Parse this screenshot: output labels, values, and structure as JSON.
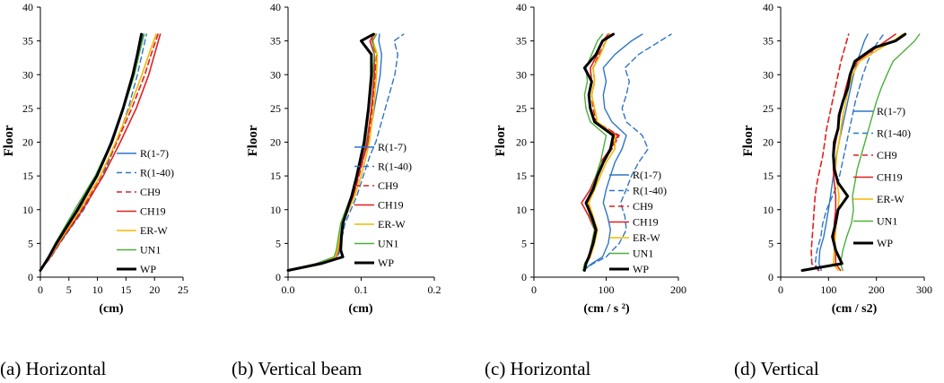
{
  "figure": {
    "captions": [
      "(a) Horizontal",
      "(b) Vertical beam",
      "(c) Horizontal",
      "(d) Vertical"
    ]
  },
  "series_styles": {
    "R(1-7)": {
      "color": "#2E75C7",
      "dash": "solid",
      "width": 1.4
    },
    "R(1-40)": {
      "color": "#2E75C7",
      "dash": "dashed",
      "width": 1.4
    },
    "CH9": {
      "color": "#E02020",
      "dash": "dashed",
      "width": 1.6
    },
    "CH19": {
      "color": "#E02020",
      "dash": "solid",
      "width": 1.6
    },
    "ER-W": {
      "color": "#F5B800",
      "dash": "solid",
      "width": 1.6
    },
    "UN1": {
      "color": "#4CAF3A",
      "dash": "solid",
      "width": 1.4
    },
    "WP": {
      "color": "#000000",
      "dash": "solid",
      "width": 3.0
    }
  },
  "chart_data": [
    {
      "type": "line",
      "title": "(a) Horizontal",
      "xlabel": "(cm)",
      "ylabel": "Floor",
      "xlim": [
        0,
        25
      ],
      "ylim": [
        0,
        40
      ],
      "xticks": [
        0,
        5,
        10,
        15,
        20,
        25
      ],
      "yticks": [
        0,
        5,
        10,
        15,
        20,
        25,
        30,
        35,
        40
      ],
      "legend_position": "right",
      "floors": [
        1,
        3,
        5,
        10,
        15,
        20,
        25,
        30,
        33,
        36
      ],
      "series": [
        {
          "name": "R(1-7)",
          "values": [
            0,
            1.6,
            2.9,
            6.8,
            9.9,
            12.3,
            14.4,
            16.2,
            17.1,
            18.0
          ]
        },
        {
          "name": "R(1-40)",
          "values": [
            0,
            1.9,
            3.4,
            7.6,
            10.9,
            13.4,
            15.4,
            17.0,
            17.8,
            18.6
          ]
        },
        {
          "name": "CH9",
          "values": [
            0,
            1.8,
            3.2,
            7.2,
            10.6,
            13.4,
            16.0,
            18.3,
            19.4,
            20.6
          ]
        },
        {
          "name": "CH19",
          "values": [
            0,
            1.8,
            3.3,
            7.4,
            11.0,
            14.0,
            16.8,
            19.0,
            20.0,
            21.0
          ]
        },
        {
          "name": "ER-W",
          "values": [
            0,
            1.7,
            3.1,
            7.0,
            10.5,
            13.2,
            15.6,
            17.8,
            19.0,
            20.3
          ]
        },
        {
          "name": "UN1",
          "values": [
            0,
            1.4,
            2.6,
            6.0,
            9.6,
            12.4,
            14.6,
            16.5,
            17.3,
            18.2
          ]
        },
        {
          "name": "WP",
          "values": [
            0,
            1.5,
            2.8,
            6.5,
            9.9,
            12.5,
            14.5,
            16.2,
            17.0,
            17.7
          ]
        }
      ]
    },
    {
      "type": "line",
      "title": "(b) Vertical beam",
      "xlabel": "(cm)",
      "ylabel": "Floor",
      "xlim": [
        0,
        0.2
      ],
      "ylim": [
        0,
        40
      ],
      "xticks": [
        0.0,
        0.1,
        0.2
      ],
      "ytick_labels": [
        "0",
        "5",
        "10",
        "15",
        "20",
        "25",
        "30",
        "35",
        "40"
      ],
      "yticks": [
        0,
        5,
        10,
        15,
        20,
        25,
        30,
        35,
        40
      ],
      "legend_position": "right",
      "floors": [
        1,
        2,
        3,
        4,
        6,
        8,
        10,
        12,
        15,
        18,
        20,
        25,
        30,
        33,
        35,
        36
      ],
      "series": [
        {
          "name": "R(1-7)",
          "values": [
            0,
            0.04,
            0.065,
            0.068,
            0.071,
            0.074,
            0.081,
            0.088,
            0.096,
            0.104,
            0.11,
            0.118,
            0.126,
            0.128,
            0.124,
            0.125
          ]
        },
        {
          "name": "R(1-40)",
          "values": [
            0,
            0.045,
            0.068,
            0.071,
            0.074,
            0.078,
            0.086,
            0.094,
            0.103,
            0.112,
            0.12,
            0.133,
            0.146,
            0.15,
            0.145,
            0.158
          ]
        },
        {
          "name": "CH9",
          "values": [
            0,
            0.042,
            0.066,
            0.069,
            0.072,
            0.075,
            0.082,
            0.089,
            0.097,
            0.104,
            0.11,
            0.115,
            0.119,
            0.121,
            0.115,
            0.118
          ]
        },
        {
          "name": "CH19",
          "values": [
            0,
            0.04,
            0.066,
            0.069,
            0.072,
            0.075,
            0.082,
            0.089,
            0.096,
            0.103,
            0.108,
            0.114,
            0.118,
            0.118,
            0.112,
            0.118
          ]
        },
        {
          "name": "ER-W",
          "values": [
            0,
            0.04,
            0.065,
            0.068,
            0.071,
            0.075,
            0.083,
            0.091,
            0.1,
            0.107,
            0.111,
            0.117,
            0.121,
            0.122,
            0.116,
            0.12
          ]
        },
        {
          "name": "UN1",
          "values": [
            0,
            0.038,
            0.063,
            0.066,
            0.069,
            0.072,
            0.079,
            0.086,
            0.094,
            0.101,
            0.106,
            0.111,
            0.116,
            0.118,
            0.116,
            0.121
          ]
        },
        {
          "name": "WP",
          "values": [
            0,
            0.045,
            0.075,
            0.072,
            0.073,
            0.075,
            0.081,
            0.087,
            0.094,
            0.1,
            0.104,
            0.11,
            0.114,
            0.114,
            0.1,
            0.117
          ]
        }
      ]
    },
    {
      "type": "line",
      "title": "(c) Horizontal",
      "xlabel": "(cm / s ²)",
      "ylabel": "Floor",
      "xlim": [
        0,
        200
      ],
      "ylim": [
        0,
        40
      ],
      "xticks": [
        0,
        100,
        200
      ],
      "yticks": [
        0,
        5,
        10,
        15,
        20,
        25,
        30,
        35,
        40
      ],
      "legend_position": "right",
      "floors": [
        1,
        2,
        3,
        5,
        7,
        9,
        11,
        13,
        15,
        17,
        19,
        21,
        23,
        25,
        27,
        29,
        31,
        33,
        35,
        36
      ],
      "series": [
        {
          "name": "R(1-7)",
          "values": [
            68,
            80,
            95,
            103,
            106,
            102,
            96,
            100,
            106,
            112,
            122,
            128,
            108,
            98,
            96,
            100,
            96,
            112,
            135,
            150
          ]
        },
        {
          "name": "R(1-40)",
          "values": [
            68,
            82,
            100,
            118,
            128,
            126,
            120,
            128,
            135,
            145,
            158,
            150,
            128,
            122,
            128,
            132,
            126,
            145,
            175,
            190
          ]
        },
        {
          "name": "CH9",
          "values": [
            70,
            72,
            78,
            82,
            86,
            80,
            74,
            82,
            88,
            96,
            108,
            118,
            86,
            82,
            80,
            84,
            82,
            90,
            100,
            105
          ]
        },
        {
          "name": "CH19",
          "values": [
            70,
            72,
            76,
            80,
            84,
            76,
            66,
            78,
            86,
            92,
            106,
            116,
            84,
            78,
            76,
            80,
            78,
            88,
            95,
            103
          ]
        },
        {
          "name": "ER-W",
          "values": [
            70,
            72,
            78,
            84,
            88,
            82,
            76,
            84,
            92,
            100,
            112,
            112,
            88,
            84,
            80,
            84,
            82,
            92,
            100,
            105
          ]
        },
        {
          "name": "UN1",
          "values": [
            68,
            70,
            76,
            80,
            84,
            78,
            72,
            80,
            86,
            92,
            96,
            100,
            78,
            72,
            70,
            74,
            72,
            80,
            88,
            95
          ]
        },
        {
          "name": "WP",
          "values": [
            70,
            72,
            76,
            82,
            86,
            80,
            72,
            82,
            88,
            96,
            106,
            110,
            84,
            78,
            76,
            80,
            70,
            86,
            95,
            110
          ]
        }
      ]
    },
    {
      "type": "line",
      "title": "(d) Vertical",
      "xlabel": "(cm / s2)",
      "ylabel": "Floor",
      "xlim": [
        0,
        300
      ],
      "ylim": [
        0,
        40
      ],
      "xticks": [
        0,
        100,
        200,
        300
      ],
      "yticks": [
        0,
        5,
        10,
        15,
        20,
        25,
        30,
        35,
        40
      ],
      "legend_position": "right",
      "floors": [
        1,
        2,
        4,
        6,
        8,
        10,
        12,
        14,
        16,
        18,
        20,
        22,
        24,
        26,
        28,
        30,
        32,
        34,
        35,
        36
      ],
      "series": [
        {
          "name": "R(1-7)",
          "values": [
            85,
            80,
            82,
            90,
            95,
            100,
            104,
            108,
            112,
            116,
            122,
            128,
            134,
            140,
            146,
            152,
            160,
            170,
            175,
            182
          ]
        },
        {
          "name": "R(1-40)",
          "values": [
            78,
            72,
            76,
            84,
            88,
            96,
            108,
            120,
            126,
            132,
            138,
            144,
            150,
            156,
            164,
            172,
            182,
            195,
            205,
            215
          ]
        },
        {
          "name": "CH9",
          "values": [
            80,
            65,
            64,
            66,
            68,
            70,
            72,
            76,
            82,
            88,
            92,
            96,
            102,
            108,
            114,
            120,
            126,
            134,
            138,
            142
          ]
        },
        {
          "name": "CH19",
          "values": [
            125,
            115,
            115,
            112,
            112,
            115,
            115,
            112,
            110,
            110,
            115,
            120,
            124,
            130,
            136,
            144,
            160,
            200,
            220,
            240
          ]
        },
        {
          "name": "ER-W",
          "values": [
            120,
            110,
            112,
            114,
            116,
            120,
            122,
            118,
            115,
            117,
            122,
            126,
            130,
            136,
            142,
            150,
            165,
            210,
            235,
            255
          ]
        },
        {
          "name": "UN1",
          "values": [
            130,
            125,
            130,
            138,
            148,
            152,
            150,
            155,
            160,
            168,
            176,
            184,
            192,
            200,
            210,
            222,
            235,
            265,
            280,
            290
          ]
        },
        {
          "name": "WP",
          "values": [
            45,
            128,
            115,
            108,
            115,
            120,
            140,
            120,
            112,
            110,
            112,
            120,
            122,
            130,
            140,
            145,
            155,
            195,
            240,
            260
          ]
        }
      ]
    }
  ]
}
